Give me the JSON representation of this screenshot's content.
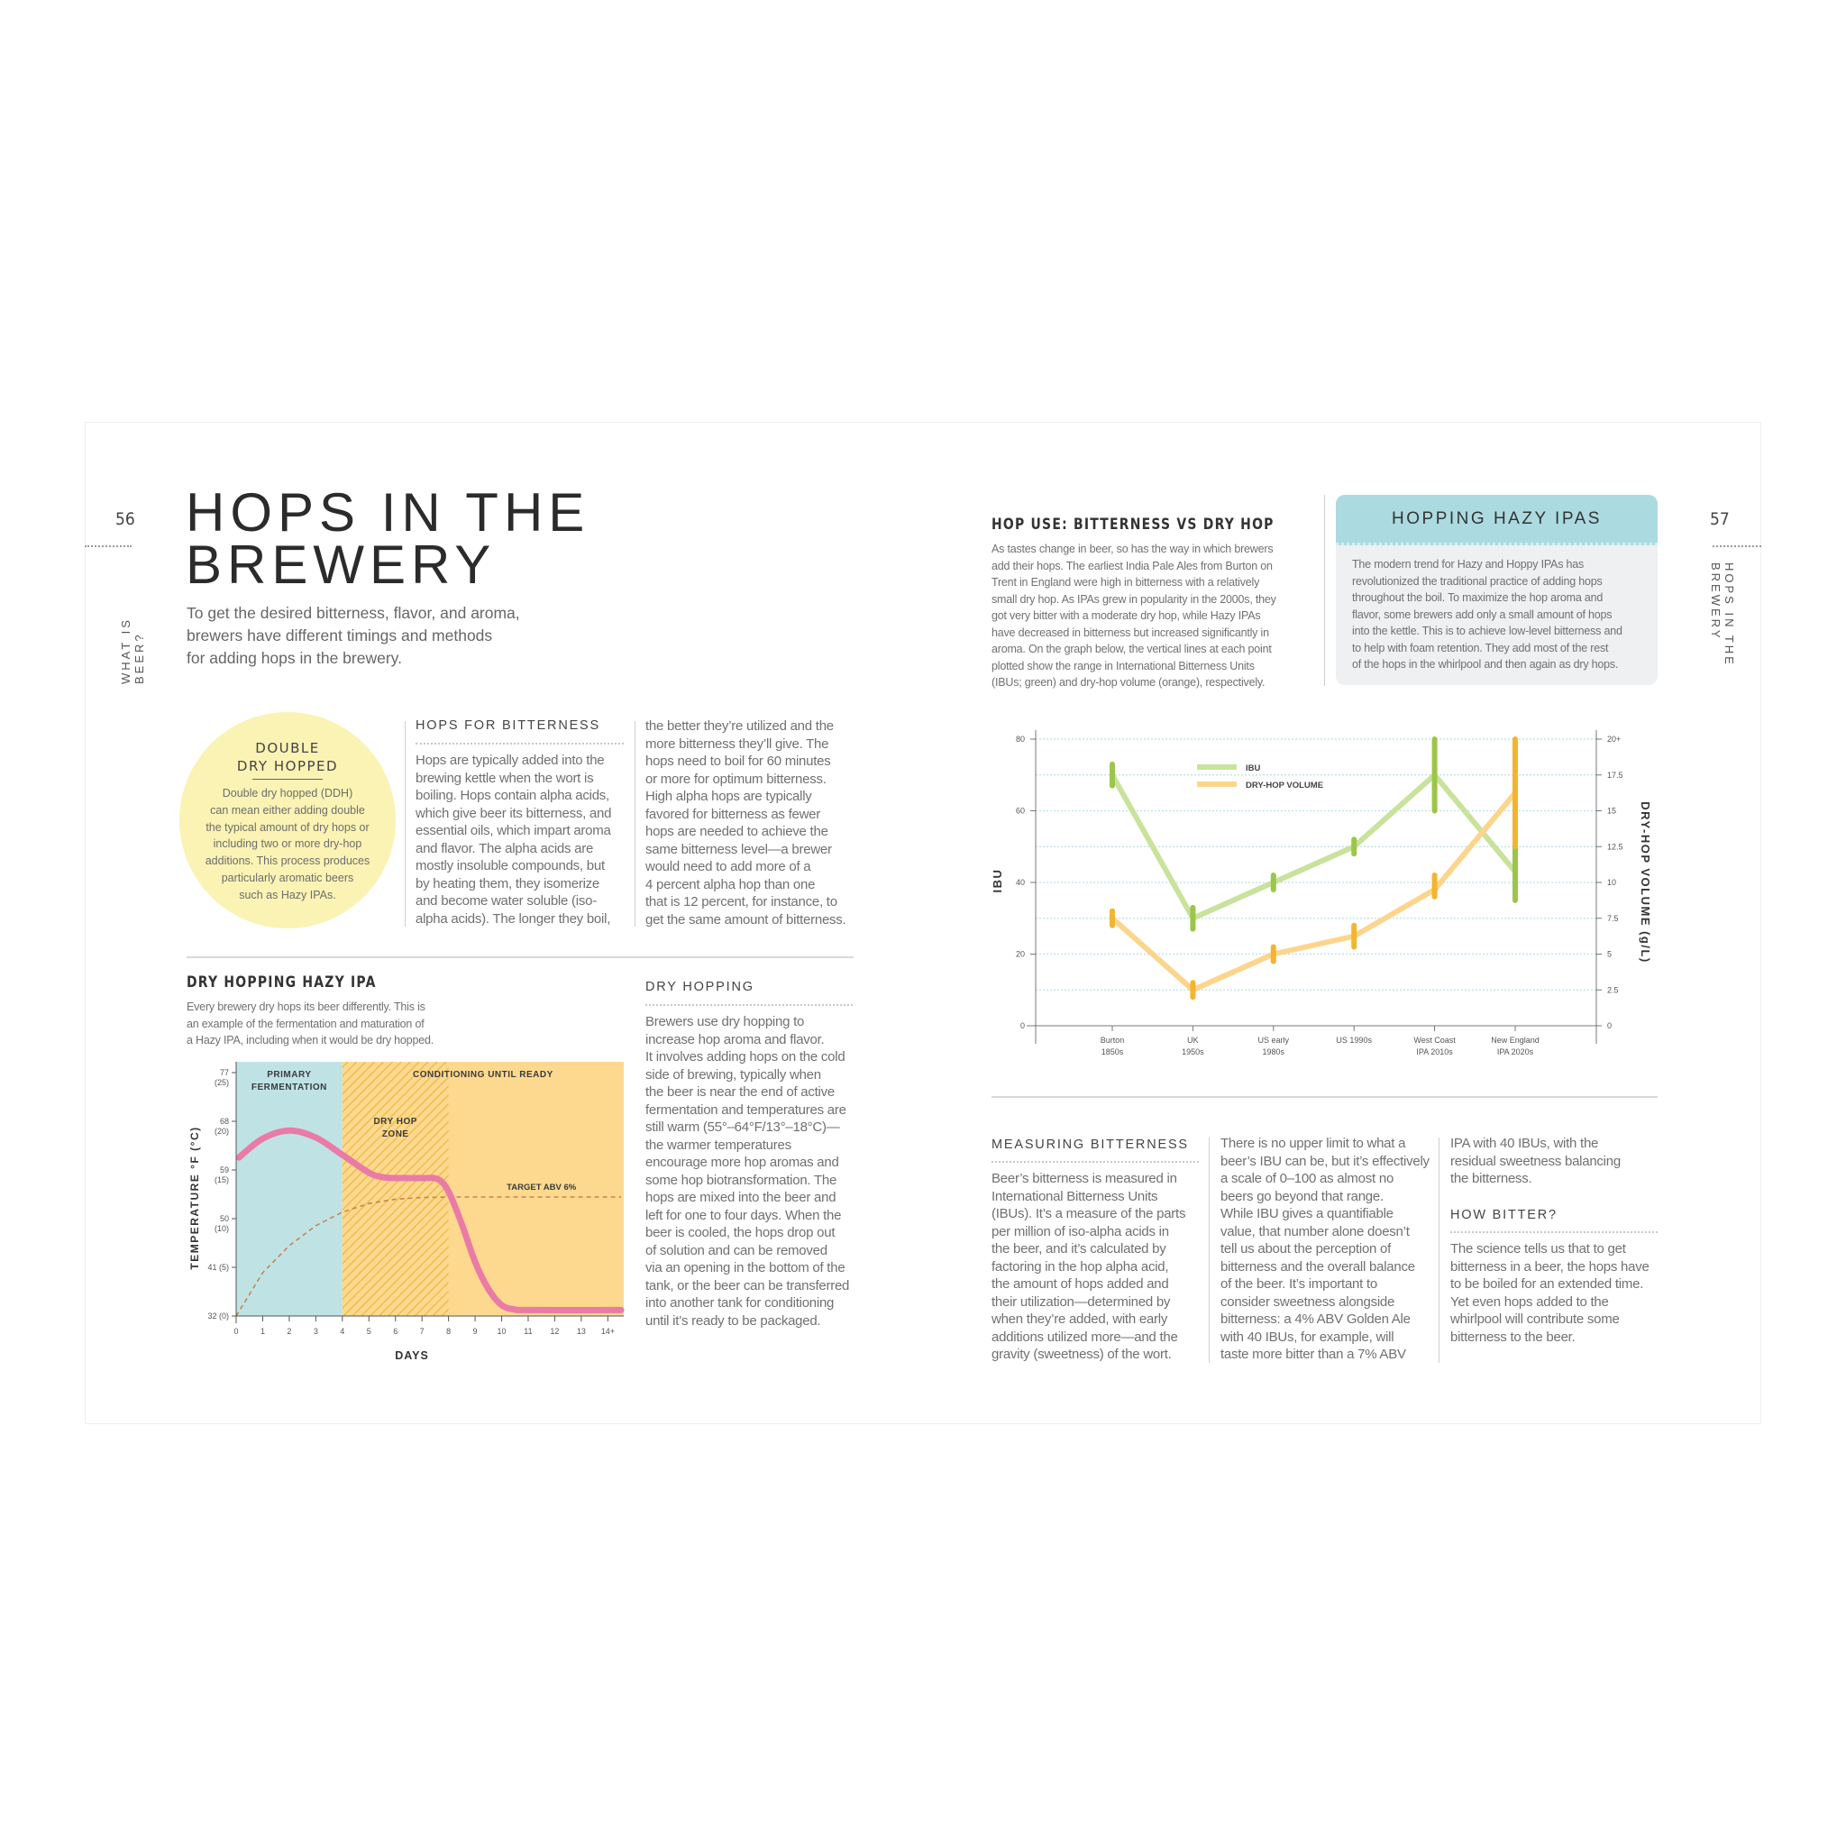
{
  "left_page": {
    "page_number": "56",
    "running_head": "WHAT IS BEER?",
    "title_lines": [
      "HOPS IN THE",
      "BREWERY"
    ],
    "intro_lines": [
      "To get the desired bitterness, flavor, and aroma,",
      "brewers have different timings and methods",
      "for adding hops in the brewery."
    ],
    "callout": {
      "heading_lines": [
        "DOUBLE",
        "DRY HOPPED"
      ],
      "body_lines": [
        "Double dry hopped (DDH)",
        "can mean either adding double",
        "the typical amount of dry hops or",
        "including two or more dry-hop",
        "additions. This process produces",
        "particularly aromatic beers",
        "such as Hazy IPAs."
      ]
    },
    "hops_for_bitterness": {
      "heading": "HOPS FOR BITTERNESS",
      "col1_lines": [
        "Hops are typically added into the",
        "brewing kettle when the wort is",
        "boiling. Hops contain alpha acids,",
        "which give beer its bitterness, and",
        "essential oils, which impart aroma",
        "and flavor. The alpha acids are",
        "mostly insoluble compounds, but",
        "by heating them, they isomerize",
        "and become water soluble (iso-",
        "alpha acids). The longer they boil,"
      ],
      "col2_lines": [
        "the better they’re utilized and the",
        "more bitterness they’ll give. The",
        "hops need to boil for 60 minutes",
        "or more for optimum bitterness.",
        "     High alpha hops are typically",
        "favored for bitterness as fewer",
        "hops are needed to achieve the",
        "same bitterness level—a brewer",
        "would need to add more of a",
        "4 percent alpha hop than one",
        "that is 12 percent, for instance, to",
        "get the same amount of bitterness."
      ]
    },
    "dry_hopping_chart_section": {
      "heading": "DRY HOPPING HAZY IPA",
      "desc_lines": [
        "Every brewery dry hops its beer differently. This is",
        "an example of the fermentation and maturation of",
        "a Hazy IPA, including when it would be dry hopped."
      ]
    },
    "dry_hopping": {
      "heading": "DRY HOPPING",
      "body_lines": [
        "Brewers use dry hopping to",
        "increase hop aroma and flavor.",
        "It involves adding hops on the cold",
        "side of brewing, typically when",
        "the beer is near the end of active",
        "fermentation and temperatures are",
        "still warm (55°–64°F/13°–18°C)—",
        "the warmer temperatures",
        "encourage more hop aromas and",
        "some hop biotransformation. The",
        "hops are mixed into the beer and",
        "left for one to four days. When the",
        "beer is cooled, the hops drop out",
        "of solution and can be removed",
        "via an opening in the bottom of the",
        "tank, or the beer can be transferred",
        "into another tank for conditioning",
        "until it’s ready to be packaged."
      ]
    }
  },
  "right_page": {
    "page_number": "57",
    "running_head": "HOPS IN THE BREWERY",
    "hop_use": {
      "heading": "HOP USE: BITTERNESS VS DRY HOP",
      "body_lines": [
        "As tastes change in beer, so has the way in which brewers",
        "add their hops. The earliest India Pale Ales from Burton on",
        "Trent in England were high in bitterness with a relatively",
        "small dry hop. As IPAs grew in popularity in the 2000s, they",
        "got very bitter with a moderate dry hop, while Hazy IPAs",
        "have decreased in bitterness but increased significantly in",
        "aroma. On the graph below, the vertical lines at each point",
        "plotted show the range in International Bitterness Units",
        "(IBUs; green) and dry-hop volume (orange), respectively."
      ]
    },
    "hopping_hazy_ipas": {
      "heading": "HOPPING HAZY IPAS",
      "body_lines": [
        "The modern trend for Hazy and Hoppy IPAs has",
        "revolutionized the traditional practice of adding hops",
        "throughout the boil. To maximize the hop aroma and",
        "flavor, some brewers add only a small amount of hops",
        "into the kettle. This is to achieve low-level bitterness and",
        "to help with foam retention. They add most of the rest",
        "of the hops in the whirlpool and then again as dry hops."
      ]
    },
    "measuring_bitterness": {
      "heading": "MEASURING BITTERNESS",
      "col1_lines": [
        "Beer’s bitterness is measured in",
        "International Bitterness Units",
        "(IBUs). It’s a measure of the parts",
        "per million of iso-alpha acids in",
        "the beer, and it’s calculated by",
        "factoring in the hop alpha acid,",
        "the amount of hops added and",
        "their utilization—determined by",
        "when they’re added, with early",
        "additions utilized more—and the",
        "gravity (sweetness) of the wort."
      ],
      "col2_lines": [
        "There is no upper limit to what a",
        "beer’s IBU can be, but it’s effectively",
        "a scale of 0–100 as almost no",
        "beers go beyond that range.",
        "     While IBU gives a quantifiable",
        "value, that number alone doesn’t",
        "tell us about the perception of",
        "bitterness and the overall balance",
        "of the beer. It’s important to",
        "consider sweetness alongside",
        "bitterness: a 4% ABV Golden Ale",
        "with 40 IBUs, for example, will",
        "taste more bitter than a 7% ABV"
      ],
      "col3_lines": [
        "IPA with 40 IBUs, with the",
        "residual sweetness balancing",
        "the bitterness."
      ]
    },
    "how_bitter": {
      "heading": "HOW BITTER?",
      "body_lines": [
        "The science tells us that to get",
        "bitterness in a beer, the hops have",
        "to be boiled for an extended time.",
        "Yet even hops added to the",
        "whirlpool will contribute some",
        "bitterness to the beer."
      ]
    }
  },
  "chart_data": [
    {
      "type": "line",
      "xlabel": "DAYS",
      "ylabel": "TEMPERATURE °F (°C)",
      "x_ticks": [
        "0",
        "1",
        "2",
        "3",
        "4",
        "5",
        "6",
        "7",
        "8",
        "9",
        "10",
        "11",
        "12",
        "13",
        "14+"
      ],
      "y_ticks": [
        {
          "f": 77,
          "label": "77",
          "sub": "(25)"
        },
        {
          "f": 68,
          "label": "68",
          "sub": "(20)"
        },
        {
          "f": 59,
          "label": "59",
          "sub": "(15)"
        },
        {
          "f": 50,
          "label": "50",
          "sub": "(10)"
        },
        {
          "f": 41,
          "label": "41 (5)",
          "sub": ""
        },
        {
          "f": 32,
          "label": "32 (0)",
          "sub": ""
        }
      ],
      "ylim": [
        32,
        79
      ],
      "xlim": [
        0,
        14.6
      ],
      "zones": [
        {
          "label_lines": [
            "PRIMARY",
            "FERMENTATION"
          ],
          "from": 0,
          "to": 4,
          "color": "#bfe3e5"
        },
        {
          "label_lines": [
            "CONDITIONING UNTIL READY"
          ],
          "from": 4,
          "to": 14.6,
          "color": "#fcd98f"
        },
        {
          "label_lines": [
            "DRY HOP",
            "ZONE"
          ],
          "from": 4,
          "to": 8,
          "color": "#f3c052",
          "hatched": true
        }
      ],
      "series": [
        {
          "kind": "temperature",
          "color": "#e97ba6",
          "points": [
            [
              0.1,
              61.3
            ],
            [
              1,
              64.8
            ],
            [
              2,
              66.3
            ],
            [
              3,
              65
            ],
            [
              4,
              61.8
            ],
            [
              5,
              58.5
            ],
            [
              5.5,
              57.7
            ],
            [
              6,
              57.5
            ],
            [
              7,
              57.5
            ],
            [
              7.6,
              57.3
            ],
            [
              8,
              55
            ],
            [
              8.5,
              49
            ],
            [
              9,
              42
            ],
            [
              9.5,
              37
            ],
            [
              10,
              34
            ],
            [
              10.5,
              33.2
            ],
            [
              11,
              33.1
            ],
            [
              14.5,
              33.1
            ]
          ]
        },
        {
          "kind": "abv",
          "label": "TARGET ABV 6%",
          "color": "#c9854a",
          "dashed": true,
          "points": [
            [
              0,
              32
            ],
            [
              1,
              40
            ],
            [
              2,
              45
            ],
            [
              3,
              48.7
            ],
            [
              4,
              51.2
            ],
            [
              5,
              52.8
            ],
            [
              6,
              53.6
            ],
            [
              7,
              53.9
            ],
            [
              8,
              54
            ],
            [
              14.5,
              54
            ]
          ]
        }
      ]
    },
    {
      "type": "line",
      "ylabel": "IBU",
      "y2label": "DRY-HOP VOLUME (g/L)",
      "categories": [
        [
          "Burton",
          "1850s"
        ],
        [
          "UK",
          "1950s"
        ],
        [
          "US early",
          "1980s"
        ],
        [
          "US 1990s",
          ""
        ],
        [
          "West Coast",
          "IPA 2010s"
        ],
        [
          "New England",
          "IPA 2020s"
        ]
      ],
      "y_ticks": [
        "0",
        "20",
        "40",
        "60",
        "80"
      ],
      "y2_ticks": [
        "0",
        "2.5",
        "5",
        "7.5",
        "10",
        "12.5",
        "15",
        "17.5",
        "20+"
      ],
      "ylim": [
        0,
        80
      ],
      "y2lim": [
        0,
        20
      ],
      "legend": "top-left",
      "series": [
        {
          "name": "IBU",
          "axis": "left",
          "line_color": "#c9e29c",
          "mark_color": "#9cc64b",
          "values": [
            70,
            30,
            40,
            50,
            70,
            43
          ],
          "ranges": [
            [
              67,
              73
            ],
            [
              27,
              33
            ],
            [
              38,
              42
            ],
            [
              48,
              52
            ],
            [
              60,
              80
            ],
            [
              35,
              50
            ]
          ]
        },
        {
          "name": "DRY-HOP VOLUME",
          "axis": "right",
          "line_color": "#fcd58c",
          "mark_color": "#f3b431",
          "values": [
            7.5,
            2.5,
            5,
            6.25,
            9.5,
            16.25
          ],
          "ranges": [
            [
              7,
              8
            ],
            [
              2,
              3
            ],
            [
              4.5,
              5.5
            ],
            [
              5.5,
              7
            ],
            [
              9,
              10.5
            ],
            [
              12.5,
              20
            ]
          ]
        }
      ]
    }
  ]
}
